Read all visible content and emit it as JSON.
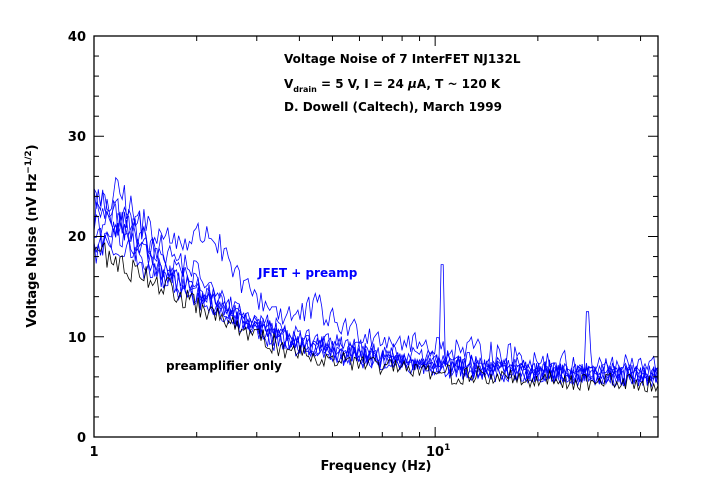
{
  "chart_data": {
    "type": "line",
    "title_lines": [
      "Voltage Noise of 7 InterFET NJ132L",
      "D. Dowell (Caltech), March 1999"
    ],
    "conditions": {
      "v_symbol": "V",
      "v_subscript": "drain",
      "v_rest": " = 5 V, I = 24 ",
      "mu": "μ",
      "i_unit_rest": "A, T ~ 120 K"
    },
    "xlabel": "Frequency (Hz)",
    "ylabel": {
      "main": "Voltage Noise (nV Hz",
      "exponent": "−1/2",
      "close": ")"
    },
    "x_scale": "log",
    "xlim": [
      1,
      45
    ],
    "ylim": [
      0,
      40
    ],
    "y_ticks": [
      "0",
      "10",
      "20",
      "30",
      "40"
    ],
    "x_tick_major": {
      "base": "10",
      "exponent": "1"
    },
    "x_tick_first": "1",
    "grid": false,
    "annotations": {
      "jfet": "JFET + preamp",
      "preamp": "preamplifier only"
    },
    "colors": {
      "jfet": "#0000ff",
      "preamp": "#000000"
    },
    "series": [
      {
        "group": "jfet",
        "points": [
          [
            1.0,
            24.0
          ],
          [
            1.2,
            22.5
          ],
          [
            1.4,
            19.0
          ],
          [
            1.6,
            17.0
          ],
          [
            1.8,
            16.0
          ],
          [
            2.0,
            15.0
          ],
          [
            2.3,
            13.5
          ],
          [
            2.6,
            12.0
          ],
          [
            3.0,
            11.0
          ],
          [
            3.5,
            10.0
          ],
          [
            4.0,
            9.5
          ],
          [
            5.0,
            8.5
          ],
          [
            6.0,
            8.0
          ],
          [
            8.0,
            7.5
          ],
          [
            10.0,
            7.0
          ],
          [
            13.0,
            6.8
          ],
          [
            17.0,
            6.5
          ],
          [
            22.0,
            6.3
          ],
          [
            30.0,
            6.2
          ],
          [
            45.0,
            6.0
          ]
        ],
        "spike": [
          10.5,
          17.2
        ]
      },
      {
        "group": "jfet",
        "points": [
          [
            1.0,
            22.0
          ],
          [
            1.2,
            24.5
          ],
          [
            1.4,
            20.0
          ],
          [
            1.6,
            18.5
          ],
          [
            1.8,
            17.5
          ],
          [
            2.0,
            16.5
          ],
          [
            2.3,
            14.0
          ],
          [
            2.6,
            12.8
          ],
          [
            3.0,
            11.5
          ],
          [
            3.5,
            11.0
          ],
          [
            4.0,
            10.0
          ],
          [
            5.0,
            9.2
          ],
          [
            6.0,
            8.8
          ],
          [
            8.0,
            8.2
          ],
          [
            10.0,
            7.6
          ],
          [
            13.0,
            7.2
          ],
          [
            17.0,
            6.9
          ],
          [
            22.0,
            6.6
          ],
          [
            30.0,
            6.5
          ],
          [
            45.0,
            6.3
          ]
        ]
      },
      {
        "group": "jfet",
        "points": [
          [
            1.0,
            20.0
          ],
          [
            1.2,
            21.0
          ],
          [
            1.4,
            21.5
          ],
          [
            1.6,
            20.0
          ],
          [
            1.8,
            19.5
          ],
          [
            2.0,
            20.0
          ],
          [
            2.2,
            20.5
          ],
          [
            2.4,
            18.0
          ],
          [
            2.6,
            16.0
          ],
          [
            3.0,
            14.0
          ],
          [
            3.5,
            12.5
          ],
          [
            4.0,
            12.0
          ],
          [
            4.5,
            13.0
          ],
          [
            5.0,
            11.5
          ],
          [
            6.0,
            10.5
          ],
          [
            7.0,
            10.0
          ],
          [
            8.0,
            9.5
          ],
          [
            10.0,
            9.0
          ],
          [
            13.0,
            8.5
          ],
          [
            17.0,
            8.0
          ],
          [
            22.0,
            7.5
          ],
          [
            30.0,
            7.2
          ],
          [
            45.0,
            7.0
          ]
        ],
        "spike": [
          28.0,
          12.5
        ]
      },
      {
        "group": "jfet",
        "points": [
          [
            1.0,
            18.5
          ],
          [
            1.2,
            20.0
          ],
          [
            1.4,
            18.0
          ],
          [
            1.6,
            16.5
          ],
          [
            1.8,
            15.5
          ],
          [
            2.0,
            14.5
          ],
          [
            2.3,
            13.0
          ],
          [
            2.6,
            12.0
          ],
          [
            3.0,
            11.0
          ],
          [
            3.5,
            10.0
          ],
          [
            4.0,
            9.3
          ],
          [
            5.0,
            8.5
          ],
          [
            6.0,
            8.0
          ],
          [
            8.0,
            7.4
          ],
          [
            10.0,
            7.0
          ],
          [
            13.0,
            6.8
          ],
          [
            17.0,
            6.6
          ],
          [
            22.0,
            6.4
          ],
          [
            30.0,
            6.2
          ],
          [
            45.0,
            6.0
          ]
        ]
      },
      {
        "group": "jfet",
        "points": [
          [
            1.0,
            21.5
          ],
          [
            1.2,
            22.0
          ],
          [
            1.4,
            19.5
          ],
          [
            1.6,
            17.5
          ],
          [
            1.8,
            16.0
          ],
          [
            2.0,
            15.0
          ],
          [
            2.3,
            13.5
          ],
          [
            2.6,
            12.5
          ],
          [
            3.0,
            11.5
          ],
          [
            3.5,
            10.5
          ],
          [
            4.0,
            10.0
          ],
          [
            5.0,
            9.0
          ],
          [
            6.0,
            8.5
          ],
          [
            8.0,
            7.8
          ],
          [
            10.0,
            7.3
          ],
          [
            13.0,
            7.0
          ],
          [
            17.0,
            6.7
          ],
          [
            22.0,
            6.5
          ],
          [
            30.0,
            6.3
          ],
          [
            45.0,
            6.1
          ]
        ]
      },
      {
        "group": "jfet",
        "points": [
          [
            1.0,
            19.0
          ],
          [
            1.2,
            19.5
          ],
          [
            1.4,
            17.0
          ],
          [
            1.6,
            15.5
          ],
          [
            1.8,
            14.5
          ],
          [
            2.0,
            13.5
          ],
          [
            2.3,
            12.5
          ],
          [
            2.6,
            11.5
          ],
          [
            3.0,
            10.5
          ],
          [
            3.5,
            9.5
          ],
          [
            4.0,
            9.0
          ],
          [
            5.0,
            8.2
          ],
          [
            6.0,
            7.8
          ],
          [
            8.0,
            7.2
          ],
          [
            10.0,
            6.9
          ],
          [
            13.0,
            6.6
          ],
          [
            17.0,
            6.4
          ],
          [
            22.0,
            6.2
          ],
          [
            30.0,
            6.0
          ],
          [
            45.0,
            5.9
          ]
        ]
      },
      {
        "group": "jfet",
        "points": [
          [
            1.0,
            23.0
          ],
          [
            1.2,
            21.0
          ],
          [
            1.4,
            18.0
          ],
          [
            1.6,
            16.0
          ],
          [
            1.8,
            15.0
          ],
          [
            2.0,
            14.0
          ],
          [
            2.3,
            12.8
          ],
          [
            2.6,
            11.8
          ],
          [
            3.0,
            10.8
          ],
          [
            3.5,
            10.0
          ],
          [
            4.0,
            9.5
          ],
          [
            5.0,
            8.7
          ],
          [
            6.0,
            8.2
          ],
          [
            8.0,
            7.6
          ],
          [
            10.0,
            7.2
          ],
          [
            13.0,
            6.9
          ],
          [
            17.0,
            6.6
          ],
          [
            22.0,
            6.4
          ],
          [
            30.0,
            6.2
          ],
          [
            45.0,
            6.0
          ]
        ]
      },
      {
        "group": "preamp",
        "points": [
          [
            1.0,
            19.0
          ],
          [
            1.2,
            17.0
          ],
          [
            1.4,
            16.5
          ],
          [
            1.6,
            15.0
          ],
          [
            1.8,
            14.0
          ],
          [
            2.0,
            13.0
          ],
          [
            2.3,
            12.0
          ],
          [
            2.6,
            11.0
          ],
          [
            3.0,
            10.0
          ],
          [
            3.5,
            9.0
          ],
          [
            4.0,
            8.5
          ],
          [
            5.0,
            7.8
          ],
          [
            6.0,
            7.3
          ],
          [
            8.0,
            6.8
          ],
          [
            10.0,
            6.4
          ],
          [
            13.0,
            6.1
          ],
          [
            17.0,
            5.9
          ],
          [
            22.0,
            5.7
          ],
          [
            30.0,
            5.5
          ],
          [
            45.0,
            5.4
          ]
        ]
      }
    ]
  }
}
